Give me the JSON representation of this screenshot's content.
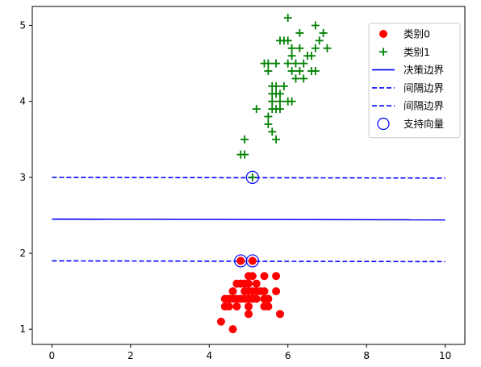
{
  "chart_data": {
    "type": "scatter",
    "xlim": [
      -0.5,
      10.5
    ],
    "ylim": [
      0.8,
      5.25
    ],
    "xticks": [
      0,
      2,
      4,
      6,
      8,
      10
    ],
    "yticks": [
      1,
      2,
      3,
      4,
      5
    ],
    "grid": false,
    "legend_position": "top-right",
    "colors": {
      "class0": "#ff0000",
      "class1": "#008000",
      "boundary": "#0000ff",
      "support": "#0000ff"
    },
    "series": [
      {
        "name": "类别0",
        "marker": "circle",
        "color": "#ff0000",
        "points": [
          [
            4.3,
            1.1
          ],
          [
            4.6,
            1.0
          ],
          [
            4.4,
            1.3
          ],
          [
            4.5,
            1.3
          ],
          [
            4.4,
            1.4
          ],
          [
            4.5,
            1.4
          ],
          [
            4.6,
            1.5
          ],
          [
            4.7,
            1.3
          ],
          [
            4.7,
            1.4
          ],
          [
            4.7,
            1.6
          ],
          [
            4.8,
            1.4
          ],
          [
            4.8,
            1.6
          ],
          [
            4.8,
            1.9
          ],
          [
            4.9,
            1.4
          ],
          [
            4.9,
            1.5
          ],
          [
            5.0,
            1.2
          ],
          [
            5.0,
            1.3
          ],
          [
            5.0,
            1.4
          ],
          [
            5.0,
            1.5
          ],
          [
            5.0,
            1.6
          ],
          [
            5.0,
            1.7
          ],
          [
            5.1,
            1.4
          ],
          [
            5.1,
            1.5
          ],
          [
            5.1,
            1.7
          ],
          [
            5.1,
            1.9
          ],
          [
            5.2,
            1.4
          ],
          [
            5.2,
            1.5
          ],
          [
            5.3,
            1.5
          ],
          [
            5.4,
            1.3
          ],
          [
            5.4,
            1.5
          ],
          [
            5.4,
            1.7
          ],
          [
            5.5,
            1.4
          ],
          [
            5.5,
            1.3
          ],
          [
            5.7,
            1.5
          ],
          [
            5.7,
            1.7
          ],
          [
            5.8,
            1.2
          ],
          [
            5.4,
            1.4
          ],
          [
            4.6,
            1.4
          ],
          [
            4.9,
            1.6
          ],
          [
            5.2,
            1.6
          ]
        ]
      },
      {
        "name": "类别1",
        "marker": "plus",
        "color": "#008000",
        "points": [
          [
            4.8,
            3.3
          ],
          [
            4.9,
            3.3
          ],
          [
            4.9,
            3.5
          ],
          [
            5.1,
            3.0
          ],
          [
            5.2,
            3.9
          ],
          [
            5.4,
            4.5
          ],
          [
            5.5,
            4.4
          ],
          [
            5.5,
            4.5
          ],
          [
            5.5,
            3.7
          ],
          [
            5.5,
            3.8
          ],
          [
            5.6,
            3.9
          ],
          [
            5.6,
            4.2
          ],
          [
            5.6,
            4.1
          ],
          [
            5.6,
            3.6
          ],
          [
            5.7,
            4.5
          ],
          [
            5.7,
            4.2
          ],
          [
            5.7,
            4.1
          ],
          [
            5.7,
            3.5
          ],
          [
            5.8,
            4.0
          ],
          [
            5.8,
            3.9
          ],
          [
            5.8,
            4.1
          ],
          [
            5.9,
            4.2
          ],
          [
            6.0,
            4.0
          ],
          [
            6.0,
            4.5
          ],
          [
            6.0,
            5.1
          ],
          [
            6.1,
            4.0
          ],
          [
            6.1,
            4.6
          ],
          [
            6.1,
            4.7
          ],
          [
            6.2,
            4.3
          ],
          [
            6.2,
            4.5
          ],
          [
            6.3,
            4.4
          ],
          [
            6.3,
            4.9
          ],
          [
            6.3,
            4.7
          ],
          [
            6.4,
            4.5
          ],
          [
            6.4,
            4.3
          ],
          [
            6.5,
            4.6
          ],
          [
            6.6,
            4.4
          ],
          [
            6.7,
            4.4
          ],
          [
            6.7,
            4.7
          ],
          [
            6.8,
            4.8
          ],
          [
            6.9,
            4.9
          ],
          [
            7.0,
            4.7
          ],
          [
            6.7,
            5.0
          ],
          [
            6.6,
            4.6
          ],
          [
            5.8,
            4.8
          ],
          [
            5.9,
            4.8
          ],
          [
            6.1,
            4.4
          ],
          [
            6.0,
            4.8
          ],
          [
            5.7,
            3.9
          ],
          [
            5.6,
            4.0
          ]
        ]
      }
    ],
    "lines": [
      {
        "name": "决策边界",
        "style": "solid",
        "color": "#0000ff",
        "x": [
          0,
          10
        ],
        "y": [
          2.45,
          2.44
        ]
      },
      {
        "name": "间隔边界",
        "style": "dashed",
        "color": "#0000ff",
        "x": [
          0,
          10
        ],
        "y": [
          3.0,
          2.99
        ]
      },
      {
        "name": "间隔边界",
        "style": "dashed",
        "color": "#0000ff",
        "x": [
          0,
          10
        ],
        "y": [
          1.9,
          1.89
        ]
      }
    ],
    "support_vectors": {
      "name": "支持向量",
      "color": "#0000ff",
      "points": [
        [
          4.8,
          1.9
        ],
        [
          5.1,
          1.9
        ],
        [
          5.1,
          3.0
        ]
      ]
    },
    "legend": [
      "类别0",
      "类别1",
      "决策边界",
      "间隔边界",
      "间隔边界",
      "支持向量"
    ]
  }
}
